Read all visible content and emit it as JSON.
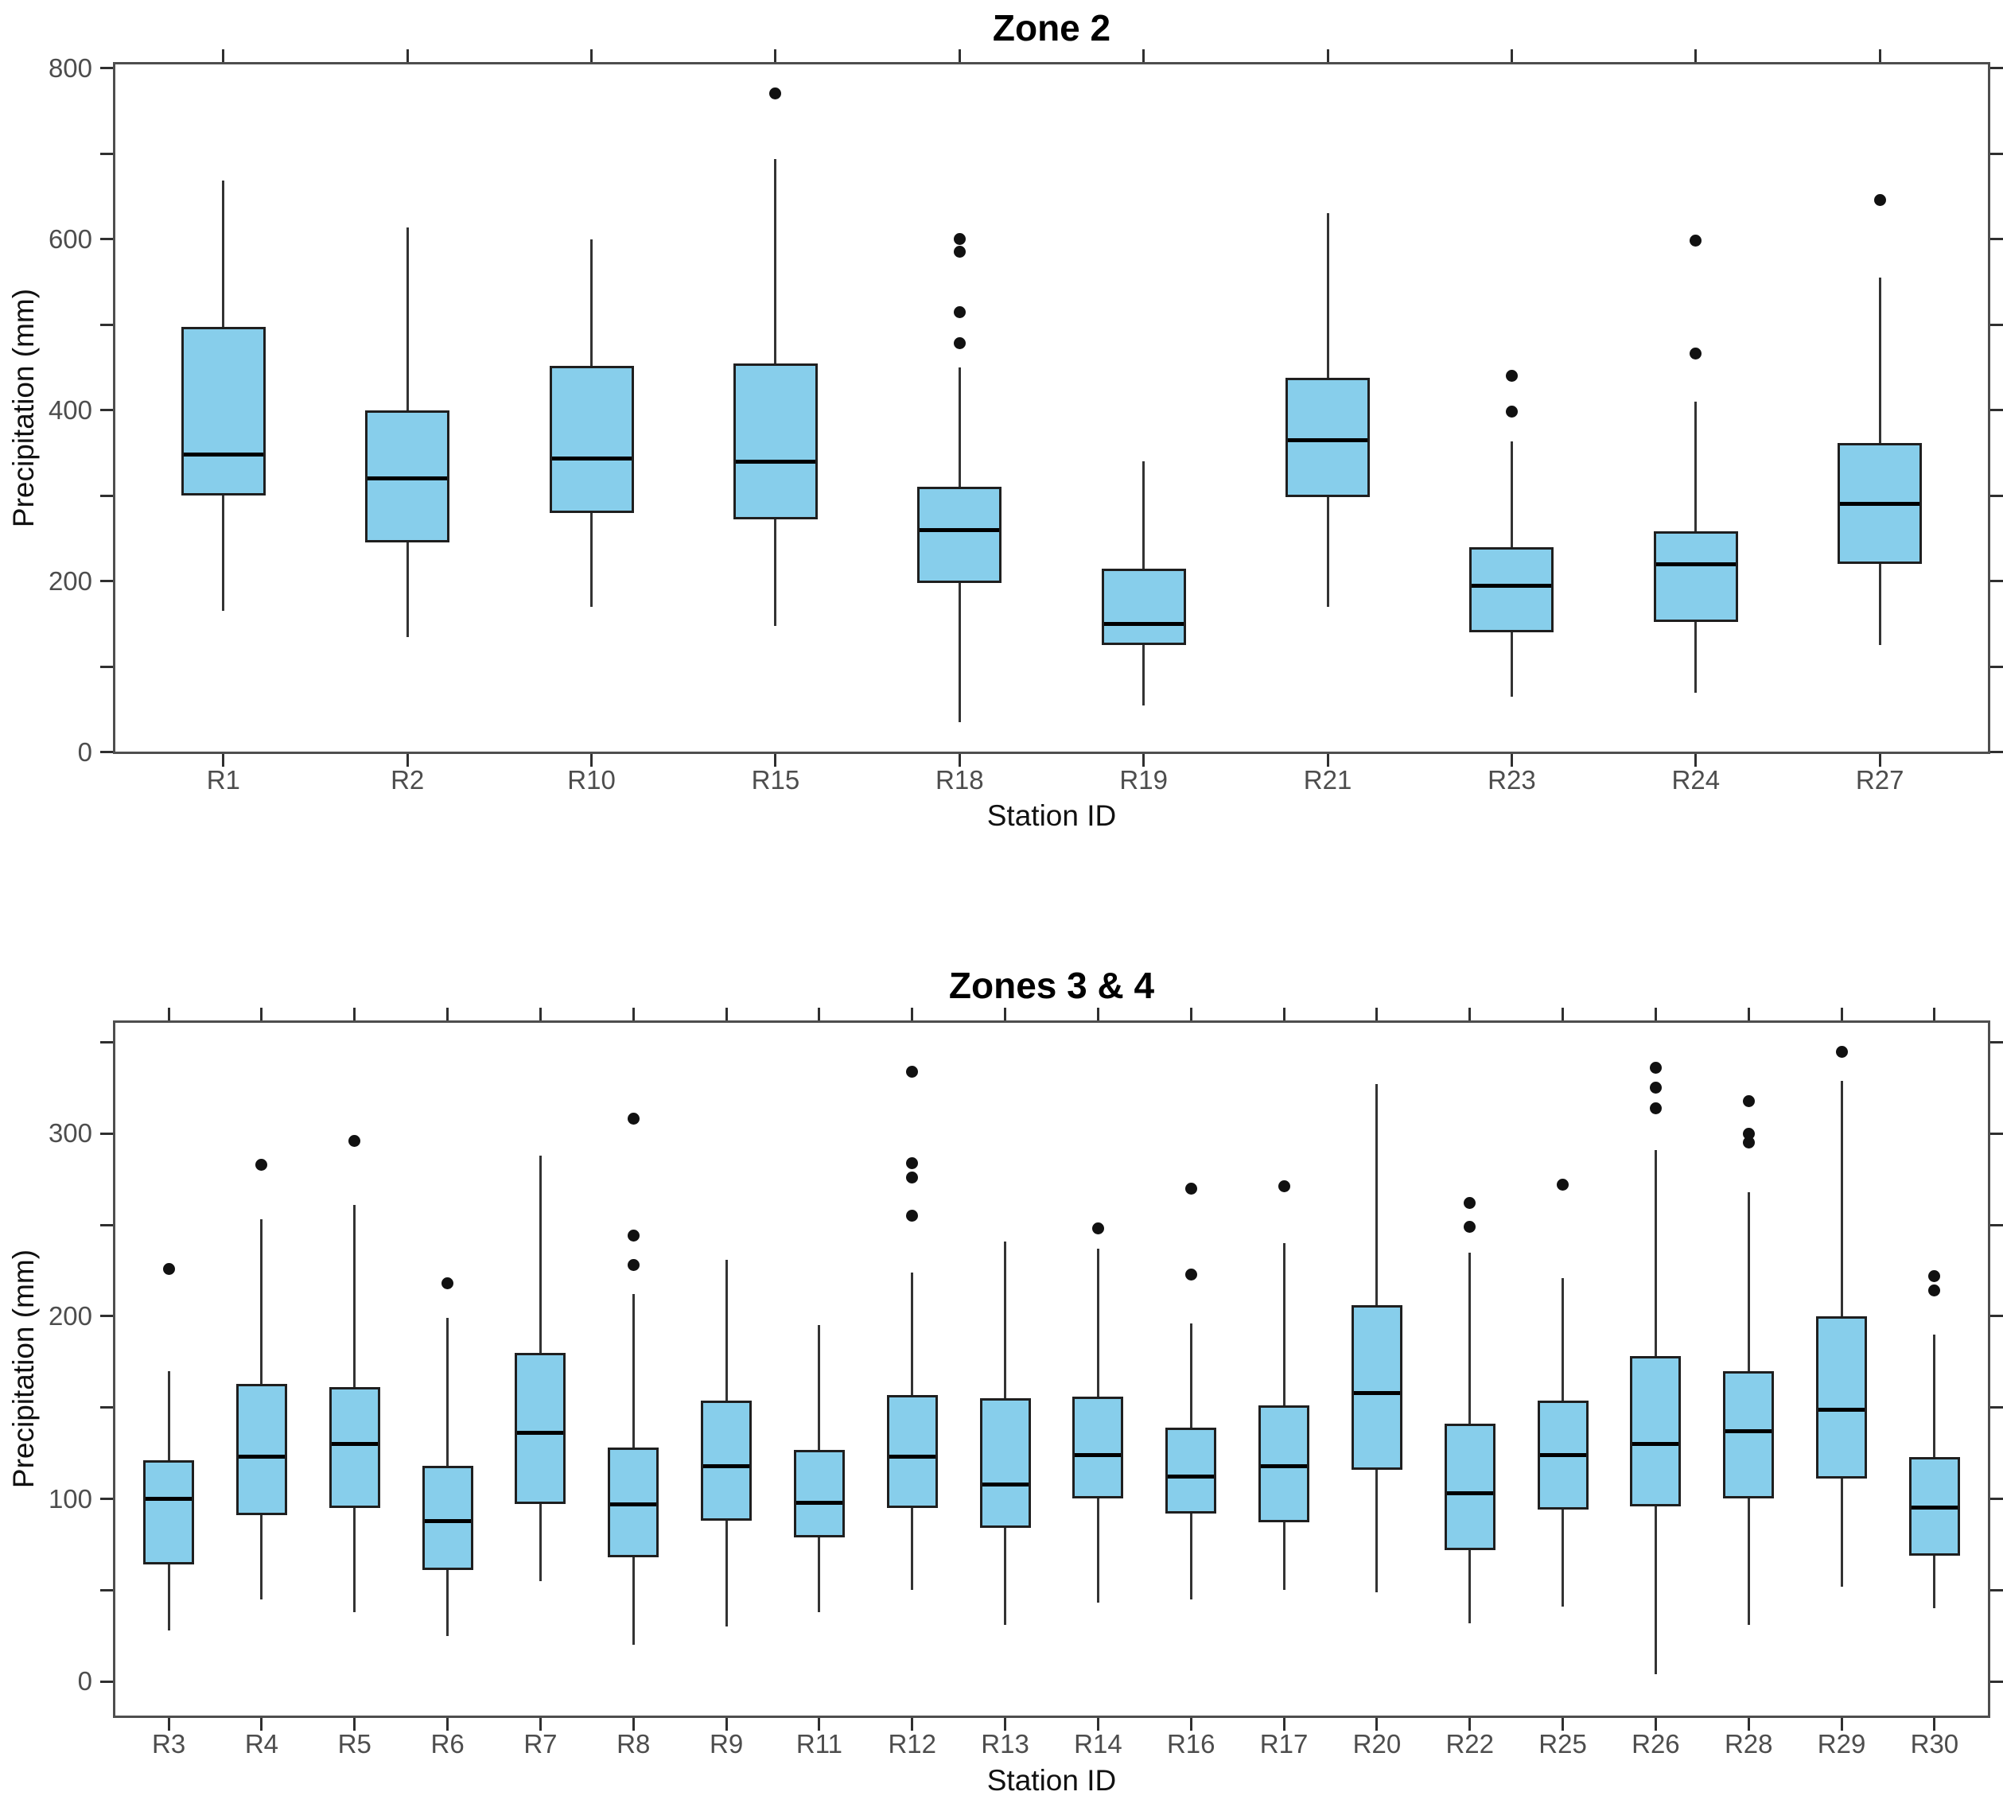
{
  "figure": {
    "background": "#ffffff"
  },
  "style": {
    "box_fill": "#87CEEB",
    "box_border": "#1f1f1f",
    "median_color": "#000000",
    "whisker_color": "#333333",
    "outlier_color": "#111111",
    "frame_color": "#4e4e4e",
    "tick_color": "#2f2f2f",
    "tick_label_color": "#4d4d4d",
    "text_color": "#000000"
  },
  "chart_data": [
    {
      "type": "boxplot",
      "title": "Zone 2",
      "xlabel": "Station ID",
      "ylabel": "Precipitation (mm)",
      "y_ticks": [
        0,
        200,
        400,
        600,
        800
      ],
      "y_minor_step": 100,
      "ylim": [
        -2,
        807
      ],
      "grid": "off",
      "legend": "none",
      "categories": [
        "R1",
        "R2",
        "R10",
        "R15",
        "R18",
        "R19",
        "R21",
        "R23",
        "R24",
        "R27"
      ],
      "stations": [
        {
          "id": "R1",
          "whisker_low": 165,
          "q1": 300,
          "median": 348,
          "q3": 497,
          "whisker_high": 668,
          "outliers": []
        },
        {
          "id": "R2",
          "whisker_low": 135,
          "q1": 245,
          "median": 320,
          "q3": 400,
          "whisker_high": 614,
          "outliers": []
        },
        {
          "id": "R10",
          "whisker_low": 170,
          "q1": 280,
          "median": 343,
          "q3": 452,
          "whisker_high": 600,
          "outliers": []
        },
        {
          "id": "R15",
          "whisker_low": 148,
          "q1": 272,
          "median": 340,
          "q3": 455,
          "whisker_high": 694,
          "outliers": [
            770
          ]
        },
        {
          "id": "R18",
          "whisker_low": 35,
          "q1": 198,
          "median": 260,
          "q3": 310,
          "whisker_high": 450,
          "outliers": [
            478,
            515,
            585,
            600
          ]
        },
        {
          "id": "R19",
          "whisker_low": 55,
          "q1": 125,
          "median": 150,
          "q3": 215,
          "whisker_high": 340,
          "outliers": []
        },
        {
          "id": "R21",
          "whisker_low": 170,
          "q1": 298,
          "median": 365,
          "q3": 438,
          "whisker_high": 630,
          "outliers": []
        },
        {
          "id": "R23",
          "whisker_low": 65,
          "q1": 140,
          "median": 195,
          "q3": 240,
          "whisker_high": 363,
          "outliers": [
            398,
            440
          ]
        },
        {
          "id": "R24",
          "whisker_low": 70,
          "q1": 152,
          "median": 220,
          "q3": 258,
          "whisker_high": 410,
          "outliers": [
            466,
            598
          ]
        },
        {
          "id": "R27",
          "whisker_low": 125,
          "q1": 220,
          "median": 290,
          "q3": 362,
          "whisker_high": 555,
          "outliers": [
            646
          ]
        }
      ]
    },
    {
      "type": "boxplot",
      "title": "Zones 3 & 4",
      "xlabel": "Station ID",
      "ylabel": "Precipitation (mm)",
      "y_ticks": [
        0,
        100,
        200,
        300
      ],
      "y_minor_step": 50,
      "ylim": [
        -20,
        362
      ],
      "grid": "off",
      "legend": "none",
      "categories": [
        "R3",
        "R4",
        "R5",
        "R6",
        "R7",
        "R8",
        "R9",
        "R11",
        "R12",
        "R13",
        "R14",
        "R16",
        "R17",
        "R20",
        "R22",
        "R25",
        "R26",
        "R28",
        "R29",
        "R30"
      ],
      "stations": [
        {
          "id": "R3",
          "whisker_low": 28,
          "q1": 64,
          "median": 100,
          "q3": 121,
          "whisker_high": 170,
          "outliers": [
            226
          ]
        },
        {
          "id": "R4",
          "whisker_low": 45,
          "q1": 91,
          "median": 123,
          "q3": 163,
          "whisker_high": 253,
          "outliers": [
            283
          ]
        },
        {
          "id": "R5",
          "whisker_low": 38,
          "q1": 95,
          "median": 130,
          "q3": 161,
          "whisker_high": 261,
          "outliers": [
            296
          ]
        },
        {
          "id": "R6",
          "whisker_low": 25,
          "q1": 61,
          "median": 88,
          "q3": 118,
          "whisker_high": 199,
          "outliers": [
            218
          ]
        },
        {
          "id": "R7",
          "whisker_low": 55,
          "q1": 97,
          "median": 136,
          "q3": 180,
          "whisker_high": 288,
          "outliers": []
        },
        {
          "id": "R8",
          "whisker_low": 20,
          "q1": 68,
          "median": 97,
          "q3": 128,
          "whisker_high": 212,
          "outliers": [
            228,
            244,
            308
          ]
        },
        {
          "id": "R9",
          "whisker_low": 30,
          "q1": 88,
          "median": 118,
          "q3": 154,
          "whisker_high": 231,
          "outliers": []
        },
        {
          "id": "R11",
          "whisker_low": 38,
          "q1": 79,
          "median": 98,
          "q3": 127,
          "whisker_high": 195,
          "outliers": []
        },
        {
          "id": "R12",
          "whisker_low": 50,
          "q1": 95,
          "median": 123,
          "q3": 157,
          "whisker_high": 224,
          "outliers": [
            255,
            276,
            284,
            334
          ]
        },
        {
          "id": "R13",
          "whisker_low": 31,
          "q1": 84,
          "median": 108,
          "q3": 155,
          "whisker_high": 241,
          "outliers": []
        },
        {
          "id": "R14",
          "whisker_low": 43,
          "q1": 100,
          "median": 124,
          "q3": 156,
          "whisker_high": 237,
          "outliers": [
            248
          ]
        },
        {
          "id": "R16",
          "whisker_low": 45,
          "q1": 92,
          "median": 112,
          "q3": 139,
          "whisker_high": 196,
          "outliers": [
            223,
            270
          ]
        },
        {
          "id": "R17",
          "whisker_low": 50,
          "q1": 87,
          "median": 118,
          "q3": 151,
          "whisker_high": 240,
          "outliers": [
            271
          ]
        },
        {
          "id": "R20",
          "whisker_low": 49,
          "q1": 116,
          "median": 158,
          "q3": 206,
          "whisker_high": 327,
          "outliers": []
        },
        {
          "id": "R22",
          "whisker_low": 32,
          "q1": 72,
          "median": 103,
          "q3": 141,
          "whisker_high": 235,
          "outliers": [
            249,
            262
          ]
        },
        {
          "id": "R25",
          "whisker_low": 41,
          "q1": 94,
          "median": 124,
          "q3": 154,
          "whisker_high": 221,
          "outliers": [
            272
          ]
        },
        {
          "id": "R26",
          "whisker_low": 4,
          "q1": 96,
          "median": 130,
          "q3": 178,
          "whisker_high": 291,
          "outliers": [
            314,
            325,
            336
          ]
        },
        {
          "id": "R28",
          "whisker_low": 31,
          "q1": 100,
          "median": 137,
          "q3": 170,
          "whisker_high": 268,
          "outliers": [
            295,
            300,
            318
          ]
        },
        {
          "id": "R29",
          "whisker_low": 52,
          "q1": 111,
          "median": 149,
          "q3": 200,
          "whisker_high": 329,
          "outliers": [
            345
          ]
        },
        {
          "id": "R30",
          "whisker_low": 40,
          "q1": 69,
          "median": 95,
          "q3": 123,
          "whisker_high": 190,
          "outliers": [
            214,
            222
          ]
        }
      ]
    }
  ]
}
